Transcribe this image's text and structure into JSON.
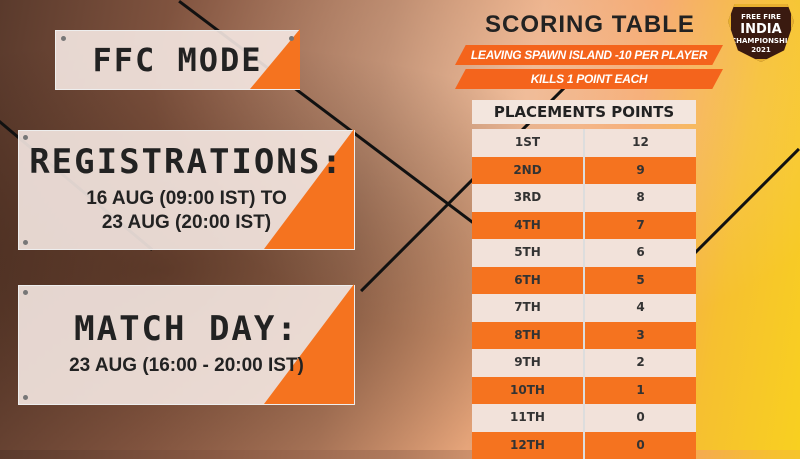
{
  "left": {
    "mode_title": "FFC MODE",
    "registrations": {
      "title": "REGISTRATIONS:",
      "line1": "16 AUG (09:00 IST) TO",
      "line2": "23 AUG (20:00 IST)"
    },
    "match_day": {
      "title": "MATCH DAY:",
      "line1": "23 AUG (16:00 - 20:00 IST)"
    }
  },
  "scoring": {
    "title": "SCORING TABLE",
    "rule1": "LEAVING SPAWN ISLAND -10 PER PLAYER",
    "rule2": "KILLS  1 POINT EACH",
    "table_header": "PLACEMENTS POINTS",
    "rows": [
      {
        "place": "1ST",
        "points": "12"
      },
      {
        "place": "2ND",
        "points": "9"
      },
      {
        "place": "3RD",
        "points": "8"
      },
      {
        "place": "4TH",
        "points": "7"
      },
      {
        "place": "5TH",
        "points": "6"
      },
      {
        "place": "6TH",
        "points": "5"
      },
      {
        "place": "7TH",
        "points": "4"
      },
      {
        "place": "8TH",
        "points": "3"
      },
      {
        "place": "9TH",
        "points": "2"
      },
      {
        "place": "10TH",
        "points": "1"
      },
      {
        "place": "11TH",
        "points": "0"
      },
      {
        "place": "12TH",
        "points": "0"
      }
    ]
  },
  "logo": {
    "top": "FREE FIRE",
    "main": "INDIA",
    "sub": "CHAMPIONSHIP",
    "year": "2021"
  },
  "colors": {
    "accent": "#f5731f",
    "panel": "#f2e2da",
    "text": "#222222"
  }
}
